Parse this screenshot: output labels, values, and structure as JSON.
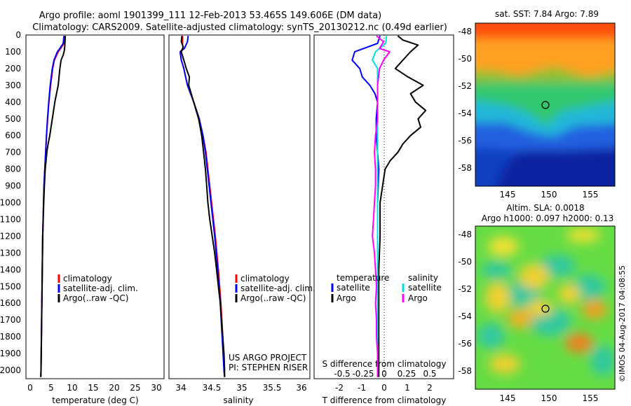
{
  "title": {
    "line1": "Argo profile: aoml 1901399_111 12-Feb-2013 53.465S 149.606E (DM data)",
    "line2": "Climatology: CARS2009. Satellite-adjusted climatology: synTS_20130212.nc (0.49d earlier)"
  },
  "colors": {
    "climatology": "#ff0000",
    "satellite": "#0000ff",
    "argo": "#000000",
    "satellite_salinity": "#00e0e0",
    "argo_salinity": "#ff00ff"
  },
  "chart_data": [
    {
      "id": "temperature",
      "type": "line",
      "xlabel": "temperature (deg C)",
      "ylabel": "",
      "xlim": [
        -1.5,
        31.5
      ],
      "ylim": [
        0,
        2050
      ],
      "y_reversed": true,
      "x_ticks": [
        "0",
        "5",
        "10",
        "15",
        "20",
        "25",
        "30"
      ],
      "y_ticks": [
        "0",
        "100",
        "200",
        "300",
        "400",
        "500",
        "600",
        "700",
        "800",
        "900",
        "1000",
        "1100",
        "1200",
        "1300",
        "1400",
        "1500",
        "1600",
        "1700",
        "1800",
        "1900",
        "2000"
      ],
      "legend": [
        "climatology",
        "satellite-adj. clim.",
        "Argo(..raw -QC)"
      ],
      "series": [
        {
          "name": "climatology",
          "color": "#ff0000",
          "depth": [
            5,
            50,
            80,
            100,
            150,
            200,
            300,
            400,
            500,
            600,
            700,
            800,
            900,
            1000,
            1200,
            1400,
            1600,
            1800,
            2000,
            2040
          ],
          "values": [
            7.8,
            7.6,
            6.8,
            6.2,
            5.3,
            4.9,
            4.4,
            4.0,
            3.7,
            3.4,
            3.2,
            3.0,
            2.8,
            2.7,
            2.5,
            2.4,
            2.3,
            2.2,
            2.1,
            2.05
          ]
        },
        {
          "name": "satellite-adj. clim.",
          "color": "#0000ff",
          "depth": [
            5,
            50,
            80,
            100,
            150,
            200,
            300,
            400,
            500,
            600,
            700,
            800,
            900,
            1000,
            1200,
            1400,
            1600,
            1800,
            2000,
            2040
          ],
          "values": [
            7.6,
            7.4,
            6.6,
            6.0,
            5.2,
            4.8,
            4.3,
            3.95,
            3.65,
            3.4,
            3.2,
            3.0,
            2.8,
            2.7,
            2.5,
            2.4,
            2.3,
            2.2,
            2.1,
            2.05
          ]
        },
        {
          "name": "Argo(..raw -QC)",
          "color": "#000000",
          "depth": [
            5,
            60,
            90,
            120,
            150,
            200,
            250,
            300,
            350,
            400,
            450,
            500,
            550,
            600,
            650,
            700,
            750,
            800,
            900,
            1000,
            1200,
            1400,
            1600,
            1800,
            2000,
            2040
          ],
          "values": [
            7.9,
            7.8,
            7.7,
            7.4,
            6.9,
            6.6,
            6.4,
            6.2,
            5.8,
            5.4,
            5.1,
            4.8,
            4.5,
            4.2,
            3.8,
            3.5,
            3.3,
            3.1,
            2.9,
            2.75,
            2.5,
            2.4,
            2.3,
            2.2,
            2.1,
            2.05
          ]
        }
      ]
    },
    {
      "id": "salinity",
      "type": "line",
      "xlabel": "salinity",
      "ylabel": "",
      "xlim": [
        33.82,
        36.1
      ],
      "ylim": [
        0,
        2050
      ],
      "y_reversed": true,
      "x_ticks": [
        "34",
        "34.5",
        "35",
        "35.5",
        "36"
      ],
      "legend": [
        "climatology",
        "satellite-adj. clim.",
        "Argo(..raw -QC)"
      ],
      "annotations": [
        "US ARGO PROJECT",
        "PI: STEPHEN RISER"
      ],
      "series": [
        {
          "name": "climatology",
          "color": "#ff0000",
          "depth": [
            5,
            60,
            80,
            100,
            150,
            200,
            300,
            400,
            500,
            600,
            700,
            800,
            900,
            1000,
            1200,
            1400,
            1600,
            1800,
            2000,
            2040
          ],
          "values": [
            34.04,
            34.04,
            34.05,
            34.0,
            34.02,
            34.06,
            34.12,
            34.22,
            34.31,
            34.37,
            34.42,
            34.45,
            34.48,
            34.51,
            34.57,
            34.62,
            34.66,
            34.69,
            34.71,
            34.72
          ]
        },
        {
          "name": "satellite-adj. clim.",
          "color": "#0000ff",
          "depth": [
            5,
            40,
            80,
            100,
            150,
            200,
            300,
            400,
            500,
            600,
            700,
            800,
            900,
            1000,
            1200,
            1400,
            1600,
            1800,
            2000,
            2040
          ],
          "values": [
            34.13,
            34.12,
            34.07,
            34.0,
            34.02,
            34.06,
            34.12,
            34.22,
            34.31,
            34.37,
            34.41,
            34.44,
            34.47,
            34.5,
            34.56,
            34.61,
            34.65,
            34.68,
            34.71,
            34.72
          ]
        },
        {
          "name": "Argo(..raw -QC)",
          "color": "#000000",
          "depth": [
            5,
            40,
            70,
            100,
            150,
            200,
            250,
            300,
            400,
            500,
            600,
            700,
            800,
            900,
            1000,
            1100,
            1200,
            1300,
            1400,
            1500,
            1600,
            1700,
            1800,
            1900,
            2000,
            2040
          ],
          "values": [
            34.03,
            34.02,
            34.05,
            34.02,
            34.06,
            34.1,
            34.15,
            34.14,
            34.22,
            34.3,
            34.35,
            34.38,
            34.41,
            34.43,
            34.45,
            34.48,
            34.52,
            34.56,
            34.59,
            34.62,
            34.65,
            34.67,
            34.69,
            34.71,
            34.72,
            34.72
          ]
        }
      ]
    },
    {
      "id": "differences",
      "type": "line",
      "xlabel": "T difference from climatology",
      "x2label": "S difference from climatology",
      "xlim": [
        -2.5,
        3.0
      ],
      "x2lim": [
        -0.625,
        0.75
      ],
      "ylim": [
        0,
        2050
      ],
      "y_reversed": true,
      "x_ticks": [
        "-2",
        "-1",
        "0",
        "1",
        "2"
      ],
      "x2_ticks": [
        "-0.5",
        "-0.25",
        "0",
        "0.25",
        "0.5"
      ],
      "legend_temperature": {
        "header": "temperature",
        "items": [
          "satellite",
          "Argo"
        ]
      },
      "legend_salinity": {
        "header": "salinity",
        "items": [
          "satellite",
          "Argo"
        ]
      },
      "series": [
        {
          "name": "satellite",
          "group": "temperature",
          "color": "#0000ff",
          "depth": [
            5,
            50,
            100,
            150,
            200,
            250,
            300,
            350,
            400,
            500,
            600,
            700,
            800,
            1000,
            1200,
            1400,
            1600,
            1800,
            2000,
            2040
          ],
          "values": [
            0.1,
            0.0,
            -0.9,
            -1.0,
            -0.7,
            -0.6,
            -0.3,
            -0.1,
            0.0,
            -0.05,
            -0.05,
            0.0,
            0.05,
            0.0,
            0.0,
            0.0,
            0.0,
            0.0,
            0.0,
            0.0
          ]
        },
        {
          "name": "Argo",
          "group": "temperature",
          "color": "#000000",
          "depth": [
            5,
            30,
            60,
            100,
            150,
            200,
            250,
            300,
            350,
            400,
            450,
            500,
            550,
            600,
            650,
            700,
            750,
            800,
            900,
            1000,
            1200,
            1400,
            1600,
            1800,
            2000,
            2040
          ],
          "values": [
            0.8,
            1.0,
            1.6,
            1.3,
            1.0,
            0.7,
            1.2,
            1.8,
            1.3,
            1.5,
            1.9,
            1.6,
            1.7,
            1.3,
            1.0,
            0.8,
            0.5,
            0.3,
            0.2,
            0.1,
            0.1,
            0.05,
            0.05,
            0.05,
            0.05,
            0.05
          ]
        },
        {
          "name": "satellite",
          "group": "salinity",
          "color": "#00e0e0",
          "depth": [
            5,
            50,
            100,
            150,
            200,
            300,
            400,
            500,
            600,
            800,
            1000,
            1200,
            1400,
            1600,
            1800,
            2000,
            2040
          ],
          "values": [
            0.09,
            0.08,
            -0.02,
            -0.05,
            0.0,
            0.0,
            0.0,
            0.0,
            0.0,
            0.0,
            0.0,
            0.0,
            0.0,
            0.0,
            0.0,
            0.0,
            0.0
          ]
        },
        {
          "name": "Argo",
          "group": "salinity",
          "color": "#ff00ff",
          "depth": [
            5,
            40,
            80,
            100,
            150,
            200,
            300,
            400,
            500,
            600,
            700,
            800,
            900,
            1000,
            1100,
            1200,
            1300,
            1400,
            1500,
            1600,
            1700,
            1800,
            1900,
            2000,
            2040
          ],
          "values": [
            -0.01,
            0.06,
            0.02,
            0.12,
            0.06,
            0.02,
            0.0,
            0.0,
            0.0,
            -0.02,
            -0.03,
            -0.02,
            -0.02,
            -0.03,
            -0.04,
            -0.05,
            -0.03,
            -0.02,
            -0.01,
            -0.02,
            -0.01,
            -0.01,
            0.0,
            0.0,
            0.0
          ]
        }
      ]
    },
    {
      "id": "sst_map",
      "type": "heatmap",
      "title": "sat. SST: 7.84  Argo: 7.89",
      "xlim": [
        141,
        158
      ],
      "ylim": [
        -59.5,
        -47.5
      ],
      "x_ticks": [
        "145",
        "150",
        "155"
      ],
      "y_ticks": [
        "-48",
        "-50",
        "-52",
        "-54",
        "-56",
        "-58"
      ],
      "marker": {
        "lon": 149.606,
        "lat": -53.465
      }
    },
    {
      "id": "sla_map",
      "type": "heatmap",
      "title_line1": "Altim. SLA: 0.0018",
      "title_line2": "Argo h1000: 0.097 h2000: 0.13",
      "xlim": [
        141,
        158
      ],
      "ylim": [
        -59.5,
        -47.5
      ],
      "x_ticks": [
        "145",
        "150",
        "155"
      ],
      "y_ticks": [
        "-48",
        "-50",
        "-52",
        "-54",
        "-56",
        "-58"
      ],
      "marker": {
        "lon": 149.606,
        "lat": -53.465
      }
    }
  ],
  "credit": "©IMOS 04-Aug-2017 04:08:55"
}
